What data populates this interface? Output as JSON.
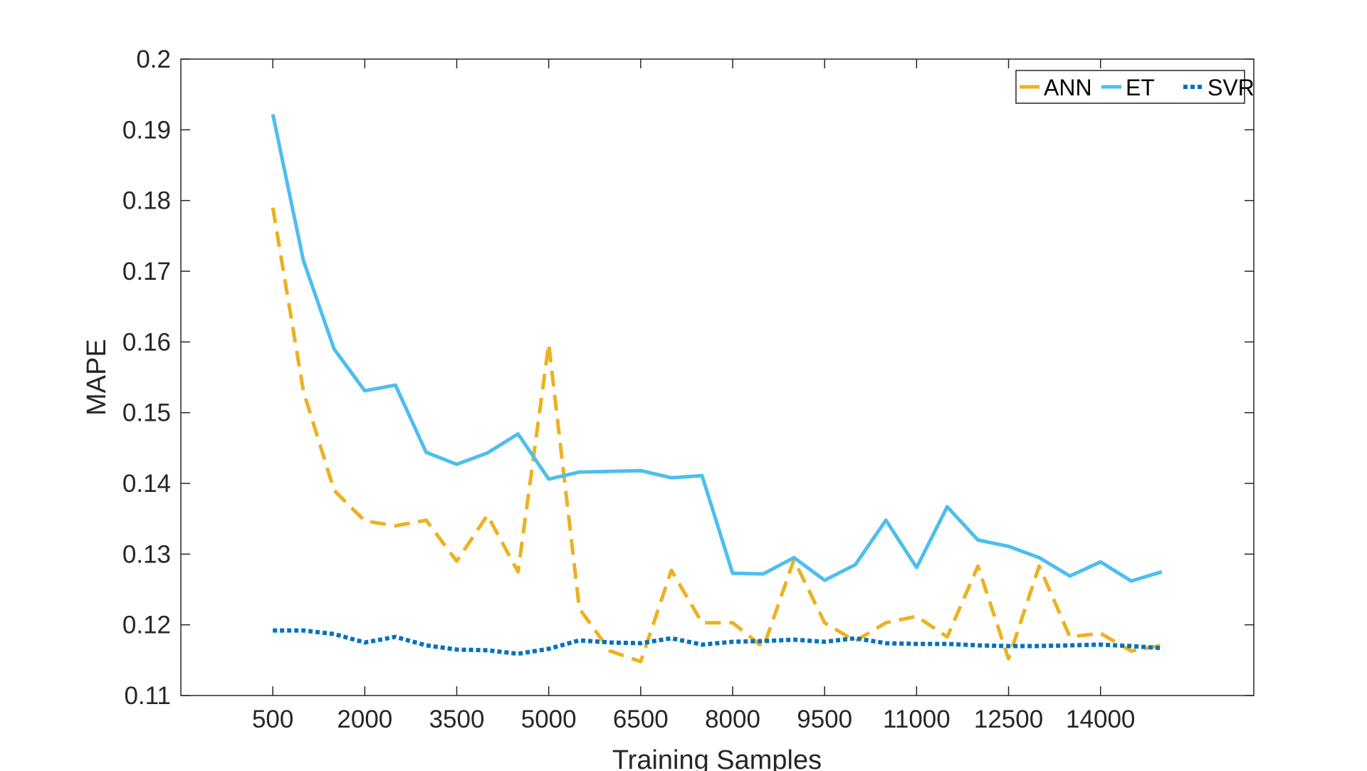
{
  "chart_data": {
    "type": "line",
    "title": "",
    "xlabel": "Training Samples",
    "ylabel": "MAPE",
    "xlim": [
      -1000,
      16500
    ],
    "ylim": [
      0.11,
      0.2
    ],
    "x_ticks": [
      500,
      2000,
      3500,
      5000,
      6500,
      8000,
      9500,
      11000,
      12500,
      14000
    ],
    "x_tick_labels": [
      "500",
      "2000",
      "3500",
      "5000",
      "6500",
      "8000",
      "9500",
      "11000",
      "12500",
      "14000"
    ],
    "y_ticks": [
      0.11,
      0.12,
      0.13,
      0.14,
      0.15,
      0.16,
      0.17,
      0.18,
      0.19,
      0.2
    ],
    "y_tick_labels": [
      "0.11",
      "0.12",
      "0.13",
      "0.14",
      "0.15",
      "0.16",
      "0.17",
      "0.18",
      "0.19",
      "0.2"
    ],
    "grid": false,
    "legend_position": "top-right",
    "x": [
      500,
      1000,
      1500,
      2000,
      2500,
      3000,
      3500,
      4000,
      4500,
      5000,
      5500,
      6000,
      6500,
      7000,
      7500,
      8000,
      8500,
      9000,
      9500,
      10000,
      10500,
      11000,
      11500,
      12000,
      12500,
      13000,
      13500,
      14000,
      14500,
      15000
    ],
    "series": [
      {
        "name": "ANN",
        "color": "#EDB120",
        "style": "dashed",
        "values": [
          0.179,
          0.153,
          0.139,
          0.1347,
          0.134,
          0.1348,
          0.129,
          0.1355,
          0.1275,
          0.1597,
          0.1223,
          0.1163,
          0.1148,
          0.1277,
          0.1203,
          0.1203,
          0.1168,
          0.1292,
          0.1203,
          0.1177,
          0.1203,
          0.1212,
          0.1183,
          0.1283,
          0.1152,
          0.1283,
          0.1183,
          0.1188,
          0.1163,
          0.1171
        ]
      },
      {
        "name": "ET",
        "color": "#4DBEEE",
        "style": "solid",
        "values": [
          0.1922,
          0.1715,
          0.159,
          0.1531,
          0.1539,
          0.1444,
          0.1427,
          0.1443,
          0.147,
          0.1406,
          0.1416,
          0.1417,
          0.1418,
          0.1408,
          0.1411,
          0.1273,
          0.1272,
          0.1295,
          0.1263,
          0.1285,
          0.1348,
          0.1281,
          0.1367,
          0.132,
          0.1311,
          0.1295,
          0.1269,
          0.1289,
          0.1262,
          0.1275
        ]
      },
      {
        "name": "SVR",
        "color": "#0072BD",
        "style": "dotted",
        "values": [
          0.1192,
          0.1192,
          0.1187,
          0.1175,
          0.1183,
          0.1171,
          0.1165,
          0.1164,
          0.1159,
          0.1166,
          0.1178,
          0.1175,
          0.1174,
          0.1181,
          0.1172,
          0.1176,
          0.1177,
          0.1179,
          0.1176,
          0.1181,
          0.1174,
          0.1173,
          0.1173,
          0.1171,
          0.117,
          0.117,
          0.1171,
          0.1172,
          0.117,
          0.1167
        ]
      }
    ]
  }
}
